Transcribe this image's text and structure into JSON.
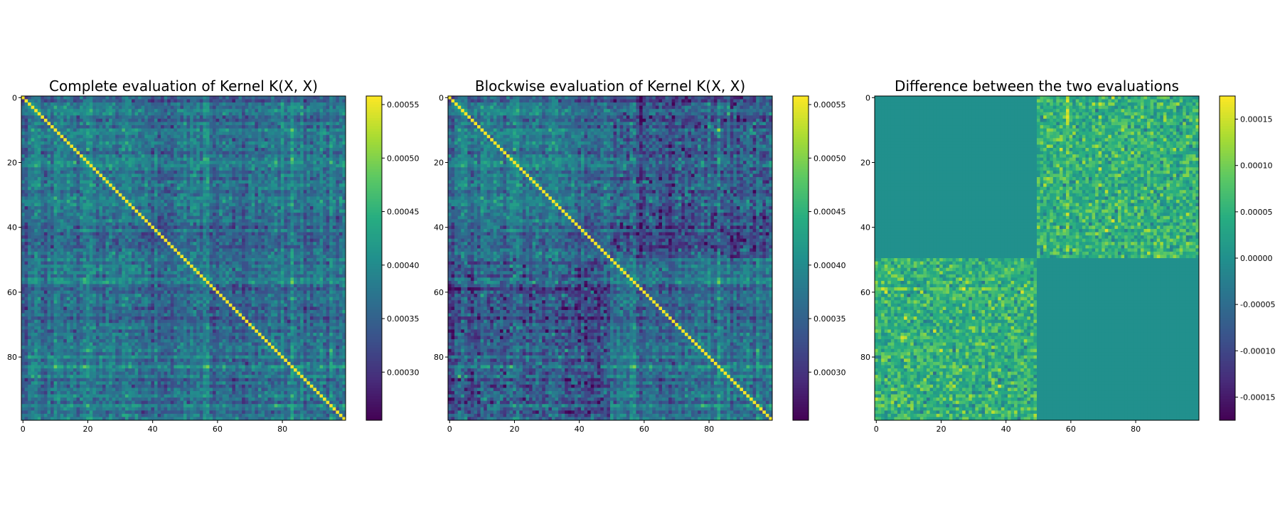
{
  "chart_data": [
    {
      "type": "heatmap",
      "title": "Complete evaluation of Kernel K(X, X)",
      "matrix_size": 100,
      "xticks": [
        0,
        20,
        40,
        60,
        80
      ],
      "yticks": [
        0,
        20,
        40,
        60,
        80
      ],
      "colormap": "viridis",
      "colorbar": {
        "vmin": 0.000255,
        "vmax": 0.000558,
        "ticks": [
          0.0003,
          0.00035,
          0.0004,
          0.00045,
          0.0005,
          0.00055
        ],
        "tick_labels": [
          "0.00030",
          "0.00035",
          "0.00040",
          "0.00045",
          "0.00050",
          "0.00055"
        ]
      },
      "diagonal_value": 0.000555,
      "offdiag_typical_range": [
        0.00029,
        0.00044
      ],
      "blockwise": false
    },
    {
      "type": "heatmap",
      "title": "Blockwise evaluation of Kernel K(X, X)",
      "matrix_size": 100,
      "xticks": [
        0,
        20,
        40,
        60,
        80
      ],
      "yticks": [
        0,
        20,
        40,
        60,
        80
      ],
      "colormap": "viridis",
      "colorbar": {
        "vmin": 0.000255,
        "vmax": 0.000558,
        "ticks": [
          0.0003,
          0.00035,
          0.0004,
          0.00045,
          0.0005,
          0.00055
        ],
        "tick_labels": [
          "0.00030",
          "0.00035",
          "0.00040",
          "0.00045",
          "0.00050",
          "0.00055"
        ]
      },
      "diagonal_value": 0.000555,
      "offdiag_typical_range": [
        0.00029,
        0.00044
      ],
      "block_split_index": 50,
      "blockwise": true
    },
    {
      "type": "heatmap",
      "title": "Difference between the two evaluations",
      "matrix_size": 100,
      "xticks": [
        0,
        20,
        40,
        60,
        80
      ],
      "yticks": [
        0,
        20,
        40,
        60,
        80
      ],
      "colormap": "viridis",
      "colorbar": {
        "vmin": -0.000175,
        "vmax": 0.000175,
        "ticks": [
          -0.00015,
          -0.0001,
          -5e-05,
          0,
          5e-05,
          0.0001,
          0.00015
        ],
        "tick_labels": [
          "-0.00015",
          "-0.00010",
          "-0.00005",
          "0.00000",
          "0.00005",
          "0.00010",
          "0.00015"
        ]
      },
      "block_split_index": 50,
      "diagonal_block_value": 0,
      "offdiag_block_typical_range": [
        -4e-05,
        0.00014
      ]
    }
  ]
}
